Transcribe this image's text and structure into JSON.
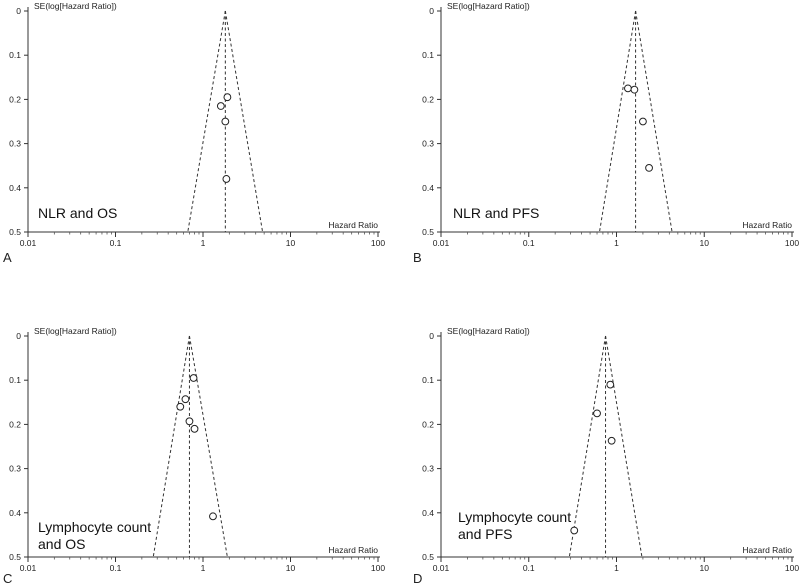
{
  "chart_data": [
    {
      "type": "scatter",
      "panel_label": "A",
      "annotation": [
        "NLR and OS"
      ],
      "xlabel": "Hazard Ratio",
      "ylabel": "SE(log[Hazard Ratio])",
      "x_scale": "log",
      "xlim": [
        0.01,
        100
      ],
      "ylim": [
        0,
        0.5
      ],
      "y_inverted": true,
      "x_ticks": [
        "0.01",
        "0.1",
        "1",
        "10",
        "100"
      ],
      "y_ticks": [
        "0",
        "0.1",
        "0.2",
        "0.3",
        "0.4",
        "0.5"
      ],
      "pooled_hr": 1.8,
      "funnel_limits_at_max_se": [
        0.67,
        4.8
      ],
      "points": [
        {
          "hr": 1.9,
          "se": 0.195
        },
        {
          "hr": 1.6,
          "se": 0.215
        },
        {
          "hr": 1.8,
          "se": 0.25
        },
        {
          "hr": 1.85,
          "se": 0.38
        }
      ]
    },
    {
      "type": "scatter",
      "panel_label": "B",
      "annotation": [
        "NLR and PFS"
      ],
      "xlabel": "Hazard Ratio",
      "ylabel": "SE(log[Hazard Ratio])",
      "x_scale": "log",
      "xlim": [
        0.01,
        100
      ],
      "ylim": [
        0,
        0.5
      ],
      "y_inverted": true,
      "x_ticks": [
        "0.01",
        "0.1",
        "1",
        "10",
        "100"
      ],
      "y_ticks": [
        "0",
        "0.1",
        "0.2",
        "0.3",
        "0.4",
        "0.5"
      ],
      "pooled_hr": 1.65,
      "funnel_limits_at_max_se": [
        0.64,
        4.3
      ],
      "points": [
        {
          "hr": 1.35,
          "se": 0.175
        },
        {
          "hr": 1.6,
          "se": 0.178
        },
        {
          "hr": 2.0,
          "se": 0.25
        },
        {
          "hr": 2.35,
          "se": 0.355
        }
      ]
    },
    {
      "type": "scatter",
      "panel_label": "C",
      "annotation": [
        "Lymphocyte count",
        "and OS"
      ],
      "xlabel": "Hazard Ratio",
      "ylabel": "SE(log[Hazard Ratio])",
      "x_scale": "log",
      "xlim": [
        0.01,
        100
      ],
      "ylim": [
        0,
        0.5
      ],
      "y_inverted": true,
      "x_ticks": [
        "0.01",
        "0.1",
        "1",
        "10",
        "100"
      ],
      "y_ticks": [
        "0",
        "0.1",
        "0.2",
        "0.3",
        "0.4",
        "0.5"
      ],
      "pooled_hr": 0.7,
      "funnel_limits_at_max_se": [
        0.27,
        1.9
      ],
      "points": [
        {
          "hr": 0.78,
          "se": 0.095
        },
        {
          "hr": 0.63,
          "se": 0.143
        },
        {
          "hr": 0.55,
          "se": 0.16
        },
        {
          "hr": 0.7,
          "se": 0.193
        },
        {
          "hr": 0.8,
          "se": 0.21
        },
        {
          "hr": 1.3,
          "se": 0.408
        }
      ]
    },
    {
      "type": "scatter",
      "panel_label": "D",
      "annotation": [
        "Lymphocyte count",
        "and PFS"
      ],
      "xlabel": "Hazard Ratio",
      "ylabel": "SE(log[Hazard Ratio])",
      "x_scale": "log",
      "xlim": [
        0.01,
        100
      ],
      "ylim": [
        0,
        0.5
      ],
      "y_inverted": true,
      "x_ticks": [
        "0.01",
        "0.1",
        "1",
        "10",
        "100"
      ],
      "y_ticks": [
        "0",
        "0.1",
        "0.2",
        "0.3",
        "0.4",
        "0.5"
      ],
      "pooled_hr": 0.75,
      "funnel_limits_at_max_se": [
        0.29,
        1.95
      ],
      "points": [
        {
          "hr": 0.85,
          "se": 0.11
        },
        {
          "hr": 0.6,
          "se": 0.175
        },
        {
          "hr": 0.88,
          "se": 0.237
        },
        {
          "hr": 0.33,
          "se": 0.44
        }
      ]
    }
  ]
}
